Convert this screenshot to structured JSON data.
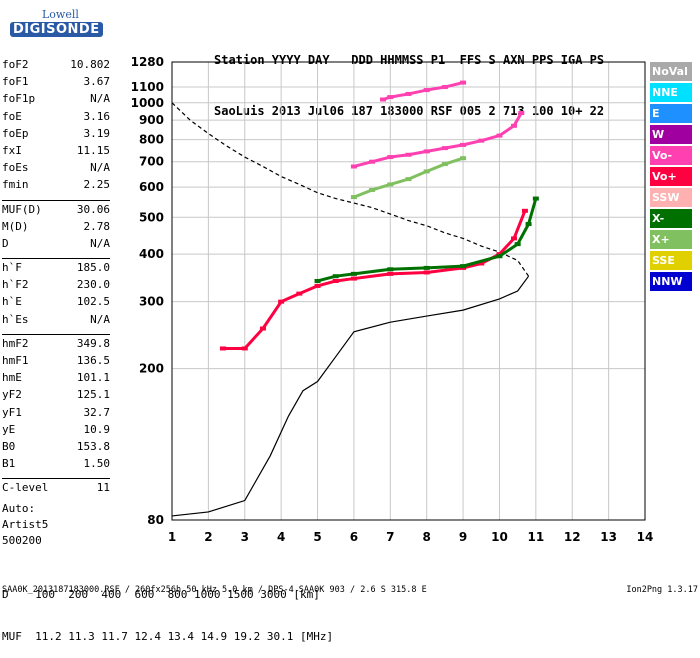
{
  "logo": {
    "line1": "Lowell",
    "line2": "DIGISONDE"
  },
  "header": {
    "line1": "Station YYYY DAY   DDD HHMMSS P1  FFS S AXN PPS IGA PS",
    "line2": "SaoLuis 2013 Jul06 187 183000 RSF 005 2 713 100 10+ 22"
  },
  "params_groups": [
    [
      [
        "foF2",
        "10.802"
      ],
      [
        "foF1",
        "3.67"
      ],
      [
        "foF1p",
        "N/A"
      ],
      [
        "foE",
        "3.16"
      ],
      [
        "foEp",
        "3.19"
      ],
      [
        "fxI",
        "11.15"
      ],
      [
        "foEs",
        "N/A"
      ],
      [
        "fmin",
        "2.25"
      ]
    ],
    [
      [
        "MUF(D)",
        "30.06"
      ],
      [
        "M(D)",
        "2.78"
      ],
      [
        "D",
        "N/A"
      ]
    ],
    [
      [
        "h`F",
        "185.0"
      ],
      [
        "h`F2",
        "230.0"
      ],
      [
        "h`E",
        "102.5"
      ],
      [
        "h`Es",
        "N/A"
      ]
    ],
    [
      [
        "hmF2",
        "349.8"
      ],
      [
        "hmF1",
        "136.5"
      ],
      [
        "hmE",
        "101.1"
      ],
      [
        "yF2",
        "125.1"
      ],
      [
        "yF1",
        "32.7"
      ],
      [
        "yE",
        "10.9"
      ],
      [
        "B0",
        "153.8"
      ],
      [
        "B1",
        "1.50"
      ]
    ],
    [
      [
        "C-level",
        "11"
      ]
    ]
  ],
  "auto": {
    "line1": "Auto:",
    "line2": "Artist5",
    "line3": "500200"
  },
  "legend": [
    {
      "label": "NoVal",
      "color": "#a9a9a9"
    },
    {
      "label": "NNE",
      "color": "#00e0ff"
    },
    {
      "label": "E",
      "color": "#1e90ff"
    },
    {
      "label": "W",
      "color": "#a000a0"
    },
    {
      "label": "Vo-",
      "color": "#ff40b0"
    },
    {
      "label": "Vo+",
      "color": "#ff0040"
    },
    {
      "label": "SSW",
      "color": "#ffb0b0"
    },
    {
      "label": "X-",
      "color": "#007000"
    },
    {
      "label": "X+",
      "color": "#80c060"
    },
    {
      "label": "SSE",
      "color": "#e0d000"
    },
    {
      "label": "NNW",
      "color": "#0000d0"
    }
  ],
  "bottom": {
    "d_row": "D    100  200  400  600  800 1000 1500 3000 [km]",
    "muf_row": "MUF  11.2 11.3 11.7 12.4 13.4 14.9 19.2 30.1 [MHz]"
  },
  "footer": {
    "left": "SAA0K_2013187183000.RSF / 260fx256h 50 kHz 5.0 km / DPS-4 SAA0K 903 / 2.6 S 315.8 E",
    "right": "Ion2Png 1.3.17"
  },
  "chart_data": {
    "type": "scatter",
    "title": "",
    "xlabel": "",
    "ylabel": "",
    "xlim": [
      1,
      14
    ],
    "ylim": [
      80,
      1280
    ],
    "x_ticks": [
      1,
      2,
      3,
      4,
      5,
      6,
      7,
      8,
      9,
      10,
      11,
      12,
      13,
      14
    ],
    "y_ticks": [
      80,
      200,
      300,
      400,
      500,
      600,
      700,
      800,
      900,
      1000,
      1100,
      1280
    ],
    "y_scale": "log-like",
    "grid": true,
    "series": [
      {
        "name": "Vo+",
        "color": "#ff0040",
        "x": [
          2.4,
          3.0,
          3.5,
          4.0,
          4.5,
          5.0,
          5.5,
          6.0,
          7.0,
          8.0,
          9.0,
          9.5,
          10.0,
          10.4,
          10.7
        ],
        "y": [
          226,
          226,
          255,
          300,
          315,
          330,
          340,
          345,
          355,
          358,
          368,
          378,
          400,
          440,
          520
        ]
      },
      {
        "name": "X-",
        "color": "#007000",
        "x": [
          5.0,
          5.5,
          6.0,
          7.0,
          8.0,
          9.0,
          10.0,
          10.5,
          10.8,
          11.0
        ],
        "y": [
          340,
          350,
          355,
          365,
          368,
          372,
          395,
          425,
          480,
          560
        ]
      },
      {
        "name": "Vo-",
        "color": "#ff40b0",
        "x": [
          6.0,
          6.5,
          7.0,
          7.5,
          8.0,
          8.5,
          9.0,
          9.5,
          10.0,
          10.4,
          10.6
        ],
        "y": [
          680,
          700,
          720,
          730,
          745,
          760,
          775,
          795,
          820,
          870,
          940
        ]
      },
      {
        "name": "X+",
        "color": "#80c060",
        "x": [
          6.0,
          6.5,
          7.0,
          7.5,
          8.0,
          8.5,
          9.0
        ],
        "y": [
          565,
          590,
          610,
          630,
          660,
          690,
          715
        ]
      },
      {
        "name": "Vo+ (upper)",
        "color": "#ff40b0",
        "x": [
          6.8,
          7.0,
          7.5,
          8.0,
          8.5,
          9.0
        ],
        "y": [
          1020,
          1035,
          1055,
          1080,
          1100,
          1130
        ]
      }
    ],
    "profile_solid": {
      "x": [
        1.0,
        2.0,
        3.0,
        3.7,
        4.2,
        4.6,
        5.0,
        5.5,
        6.0,
        7.0,
        8.0,
        9.0,
        10.0,
        10.5,
        10.8
      ],
      "y": [
        82,
        84,
        90,
        118,
        150,
        175,
        185,
        215,
        250,
        265,
        275,
        285,
        305,
        320,
        350
      ]
    },
    "profile_dashed": {
      "x": [
        1.0,
        1.5,
        2.0,
        2.5,
        3.0,
        3.5,
        4.0,
        4.5,
        5.0,
        5.5,
        6.0,
        6.5,
        7.0,
        7.5,
        8.0,
        8.5,
        9.0,
        9.5,
        10.0,
        10.5,
        10.8
      ],
      "y": [
        1000,
        900,
        830,
        770,
        720,
        680,
        640,
        610,
        580,
        560,
        545,
        530,
        510,
        490,
        475,
        455,
        440,
        420,
        405,
        385,
        350
      ]
    }
  }
}
